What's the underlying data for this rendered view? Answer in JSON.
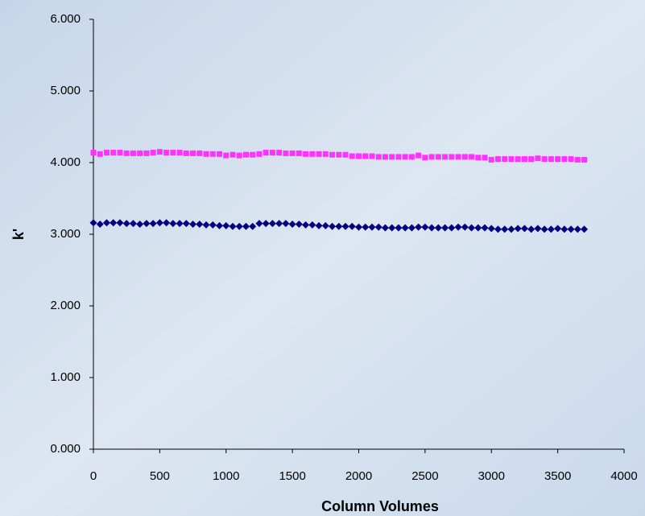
{
  "chart_data": {
    "type": "scatter",
    "xlabel": "Column Volumes",
    "ylabel": "k'",
    "x": [
      0,
      50,
      100,
      150,
      200,
      250,
      300,
      350,
      400,
      450,
      500,
      550,
      600,
      650,
      700,
      750,
      800,
      850,
      900,
      950,
      1000,
      1050,
      1100,
      1150,
      1200,
      1250,
      1300,
      1350,
      1400,
      1450,
      1500,
      1550,
      1600,
      1650,
      1700,
      1750,
      1800,
      1850,
      1900,
      1950,
      2000,
      2050,
      2100,
      2150,
      2200,
      2250,
      2300,
      2350,
      2400,
      2450,
      2500,
      2550,
      2600,
      2650,
      2700,
      2750,
      2800,
      2850,
      2900,
      2950,
      3000,
      3050,
      3100,
      3150,
      3200,
      3250,
      3300,
      3350,
      3400,
      3450,
      3500,
      3550,
      3600,
      3650,
      3700
    ],
    "series": [
      {
        "color": "#ff33ff",
        "marker": "square",
        "values": [
          4.14,
          4.12,
          4.14,
          4.14,
          4.14,
          4.13,
          4.13,
          4.13,
          4.13,
          4.14,
          4.15,
          4.14,
          4.14,
          4.14,
          4.13,
          4.13,
          4.13,
          4.12,
          4.12,
          4.12,
          4.1,
          4.11,
          4.1,
          4.11,
          4.11,
          4.12,
          4.14,
          4.14,
          4.14,
          4.13,
          4.13,
          4.13,
          4.12,
          4.12,
          4.12,
          4.12,
          4.11,
          4.11,
          4.11,
          4.09,
          4.09,
          4.09,
          4.09,
          4.08,
          4.08,
          4.08,
          4.08,
          4.08,
          4.08,
          4.1,
          4.07,
          4.08,
          4.08,
          4.08,
          4.08,
          4.08,
          4.08,
          4.08,
          4.07,
          4.07,
          4.04,
          4.05,
          4.05,
          4.05,
          4.05,
          4.05,
          4.05,
          4.06,
          4.05,
          4.05,
          4.05,
          4.05,
          4.05,
          4.04,
          4.04
        ]
      },
      {
        "color": "#000080",
        "marker": "diamond",
        "values": [
          3.16,
          3.14,
          3.16,
          3.16,
          3.16,
          3.15,
          3.15,
          3.14,
          3.15,
          3.15,
          3.16,
          3.16,
          3.15,
          3.15,
          3.15,
          3.14,
          3.14,
          3.13,
          3.13,
          3.12,
          3.12,
          3.11,
          3.11,
          3.11,
          3.11,
          3.15,
          3.15,
          3.15,
          3.15,
          3.15,
          3.14,
          3.14,
          3.13,
          3.13,
          3.12,
          3.12,
          3.11,
          3.11,
          3.11,
          3.11,
          3.1,
          3.1,
          3.1,
          3.1,
          3.09,
          3.09,
          3.09,
          3.09,
          3.09,
          3.1,
          3.1,
          3.09,
          3.09,
          3.09,
          3.09,
          3.1,
          3.1,
          3.09,
          3.09,
          3.09,
          3.08,
          3.07,
          3.07,
          3.07,
          3.08,
          3.08,
          3.07,
          3.08,
          3.07,
          3.07,
          3.08,
          3.07,
          3.07,
          3.07,
          3.07
        ]
      }
    ],
    "xlim": [
      0,
      4000
    ],
    "xticks": [
      0,
      500,
      1000,
      1500,
      2000,
      2500,
      3000,
      3500,
      4000
    ],
    "ylim": [
      0,
      6
    ],
    "yticks": [
      {
        "value": 0,
        "label": "0.000"
      },
      {
        "value": 1,
        "label": "1.000"
      },
      {
        "value": 2,
        "label": "2.000"
      },
      {
        "value": 3,
        "label": "3.000"
      },
      {
        "value": 4,
        "label": "4.000"
      },
      {
        "value": 5,
        "label": "5.000"
      },
      {
        "value": 6,
        "label": "6.000"
      }
    ],
    "grid": false
  }
}
